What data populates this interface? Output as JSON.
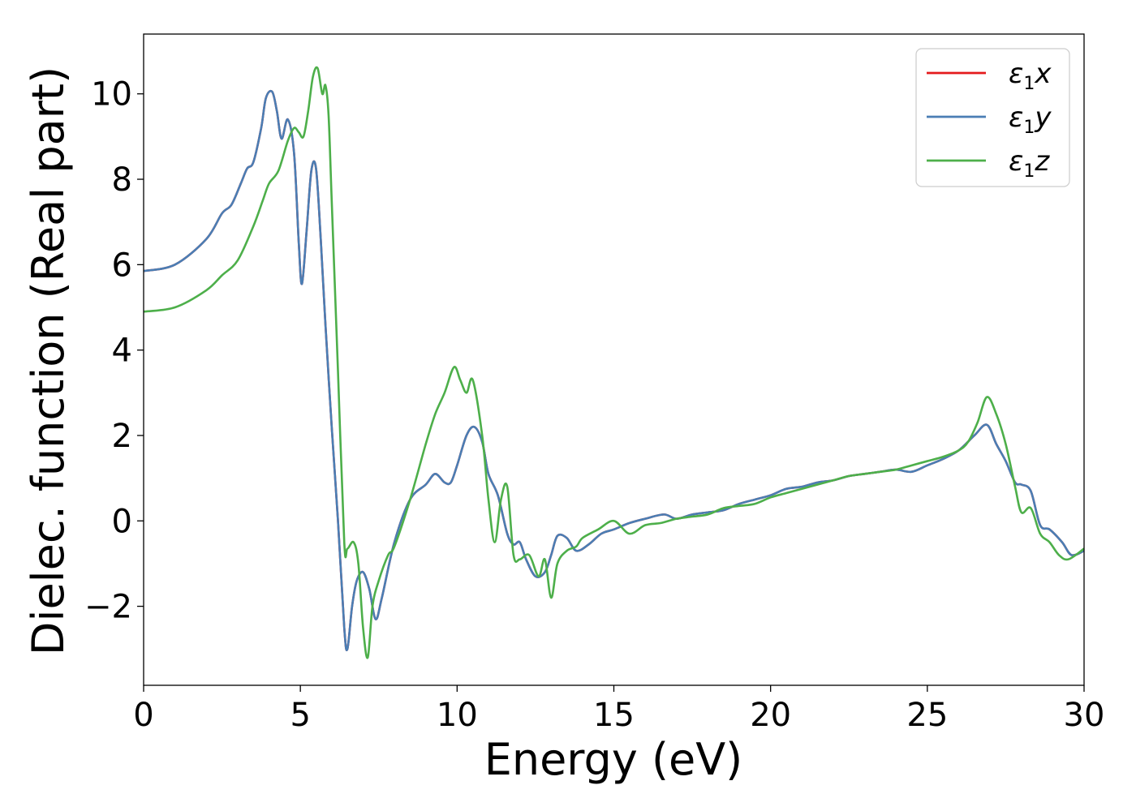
{
  "chart_data": {
    "type": "line",
    "title": "",
    "xlabel": "Energy (eV)",
    "ylabel": "Dielec. function (Real part)",
    "xlim": [
      0,
      30
    ],
    "ylim": [
      -3.85,
      11.4
    ],
    "xticks": [
      0,
      5,
      10,
      15,
      20,
      25,
      30
    ],
    "xtick_labels": [
      "0",
      "5",
      "10",
      "15",
      "20",
      "25",
      "30"
    ],
    "yticks": [
      -2,
      0,
      2,
      4,
      6,
      8,
      10
    ],
    "ytick_labels": [
      "−2",
      "0",
      "2",
      "4",
      "6",
      "8",
      "10"
    ],
    "grid": false,
    "legend_position": "top-right",
    "series": [
      {
        "name": "ε₁x",
        "legend": {
          "base": "ε",
          "sub": "1",
          "var": "x"
        },
        "color": "#e41a1c",
        "x": [
          0,
          1,
          2,
          2.5,
          2.8,
          3.1,
          3.3,
          3.5,
          3.75,
          3.9,
          4.1,
          4.25,
          4.4,
          4.6,
          4.8,
          4.95,
          5.05,
          5.2,
          5.35,
          5.5,
          5.65,
          5.8,
          6.0,
          6.2,
          6.4,
          6.5,
          6.65,
          6.8,
          7.0,
          7.2,
          7.4,
          7.6,
          8.0,
          8.5,
          9.0,
          9.3,
          9.6,
          9.8,
          10.0,
          10.3,
          10.55,
          10.8,
          11.0,
          11.3,
          11.6,
          11.8,
          12.0,
          12.2,
          12.5,
          12.8,
          13.0,
          13.2,
          13.5,
          13.8,
          14.2,
          14.6,
          15.0,
          15.5,
          16.0,
          16.6,
          17.0,
          17.5,
          18.0,
          18.5,
          19.0,
          19.5,
          20.0,
          20.5,
          21.0,
          21.5,
          22.0,
          22.5,
          23.0,
          23.5,
          24.0,
          24.5,
          25.0,
          25.5,
          26.0,
          26.5,
          26.9,
          27.2,
          27.5,
          27.8,
          28.0,
          28.3,
          28.6,
          28.9,
          29.3,
          29.6,
          30.0
        ],
        "values": [
          5.85,
          6.0,
          6.6,
          7.2,
          7.4,
          7.9,
          8.25,
          8.4,
          9.2,
          9.9,
          10.05,
          9.6,
          8.95,
          9.4,
          8.6,
          6.5,
          5.55,
          6.8,
          8.2,
          8.25,
          6.6,
          4.6,
          2.2,
          0.0,
          -2.5,
          -3.0,
          -2.0,
          -1.4,
          -1.2,
          -1.6,
          -2.3,
          -1.8,
          -0.5,
          0.5,
          0.85,
          1.1,
          0.9,
          0.9,
          1.3,
          2.0,
          2.2,
          1.85,
          1.1,
          0.6,
          -0.3,
          -0.55,
          -0.5,
          -0.9,
          -1.3,
          -1.2,
          -0.8,
          -0.35,
          -0.4,
          -0.7,
          -0.55,
          -0.3,
          -0.2,
          -0.05,
          0.05,
          0.15,
          0.05,
          0.15,
          0.2,
          0.25,
          0.4,
          0.5,
          0.6,
          0.75,
          0.8,
          0.9,
          0.95,
          1.05,
          1.1,
          1.15,
          1.2,
          1.15,
          1.3,
          1.45,
          1.65,
          2.0,
          2.25,
          1.8,
          1.4,
          0.9,
          0.85,
          0.7,
          -0.1,
          -0.2,
          -0.5,
          -0.8,
          -0.7
        ]
      },
      {
        "name": "ε₁y",
        "legend": {
          "base": "ε",
          "sub": "1",
          "var": "y"
        },
        "color": "#4a7eb4",
        "x": [
          0,
          1,
          2,
          2.5,
          2.8,
          3.1,
          3.3,
          3.5,
          3.75,
          3.9,
          4.1,
          4.25,
          4.4,
          4.6,
          4.8,
          4.95,
          5.05,
          5.2,
          5.35,
          5.5,
          5.65,
          5.8,
          6.0,
          6.2,
          6.4,
          6.5,
          6.65,
          6.8,
          7.0,
          7.2,
          7.4,
          7.6,
          8.0,
          8.5,
          9.0,
          9.3,
          9.6,
          9.8,
          10.0,
          10.3,
          10.55,
          10.8,
          11.0,
          11.3,
          11.6,
          11.8,
          12.0,
          12.2,
          12.5,
          12.8,
          13.0,
          13.2,
          13.5,
          13.8,
          14.2,
          14.6,
          15.0,
          15.5,
          16.0,
          16.6,
          17.0,
          17.5,
          18.0,
          18.5,
          19.0,
          19.5,
          20.0,
          20.5,
          21.0,
          21.5,
          22.0,
          22.5,
          23.0,
          23.5,
          24.0,
          24.5,
          25.0,
          25.5,
          26.0,
          26.5,
          26.9,
          27.2,
          27.5,
          27.8,
          28.0,
          28.3,
          28.6,
          28.9,
          29.3,
          29.6,
          30.0
        ],
        "values": [
          5.85,
          6.0,
          6.6,
          7.2,
          7.4,
          7.9,
          8.25,
          8.4,
          9.2,
          9.9,
          10.05,
          9.6,
          8.95,
          9.4,
          8.6,
          6.5,
          5.55,
          6.8,
          8.2,
          8.25,
          6.6,
          4.6,
          2.2,
          0.0,
          -2.5,
          -3.0,
          -2.0,
          -1.4,
          -1.2,
          -1.6,
          -2.3,
          -1.8,
          -0.5,
          0.5,
          0.85,
          1.1,
          0.9,
          0.9,
          1.3,
          2.0,
          2.2,
          1.85,
          1.1,
          0.6,
          -0.3,
          -0.55,
          -0.5,
          -0.9,
          -1.3,
          -1.2,
          -0.8,
          -0.35,
          -0.4,
          -0.7,
          -0.55,
          -0.3,
          -0.2,
          -0.05,
          0.05,
          0.15,
          0.05,
          0.15,
          0.2,
          0.25,
          0.4,
          0.5,
          0.6,
          0.75,
          0.8,
          0.9,
          0.95,
          1.05,
          1.1,
          1.15,
          1.2,
          1.15,
          1.3,
          1.45,
          1.65,
          2.0,
          2.25,
          1.8,
          1.4,
          0.9,
          0.85,
          0.7,
          -0.1,
          -0.2,
          -0.5,
          -0.8,
          -0.7
        ]
      },
      {
        "name": "ε₁z",
        "legend": {
          "base": "ε",
          "sub": "1",
          "var": "z"
        },
        "color": "#4daf4a",
        "x": [
          0,
          1,
          2,
          2.5,
          3.0,
          3.5,
          3.8,
          4.0,
          4.3,
          4.6,
          4.8,
          4.95,
          5.1,
          5.25,
          5.4,
          5.55,
          5.7,
          5.8,
          5.9,
          6.0,
          6.2,
          6.4,
          6.5,
          6.7,
          6.85,
          7.0,
          7.15,
          7.3,
          7.5,
          7.8,
          8.0,
          8.5,
          9.0,
          9.3,
          9.6,
          9.9,
          10.1,
          10.3,
          10.5,
          10.8,
          11.0,
          11.2,
          11.4,
          11.6,
          11.8,
          12.0,
          12.3,
          12.6,
          12.8,
          13.0,
          13.2,
          13.5,
          13.8,
          14.0,
          14.5,
          15.0,
          15.5,
          16.0,
          16.5,
          17.0,
          17.5,
          18.0,
          18.5,
          19.0,
          19.5,
          20.0,
          20.5,
          21.0,
          21.5,
          22.0,
          22.5,
          23.0,
          23.5,
          24.0,
          24.5,
          25.0,
          25.5,
          26.0,
          26.3,
          26.6,
          26.9,
          27.2,
          27.5,
          27.8,
          28.0,
          28.3,
          28.6,
          28.9,
          29.2,
          29.5,
          30.0
        ],
        "values": [
          4.9,
          5.0,
          5.4,
          5.75,
          6.1,
          6.9,
          7.5,
          7.9,
          8.2,
          8.9,
          9.2,
          9.1,
          9.0,
          9.6,
          10.4,
          10.6,
          10.0,
          10.2,
          9.5,
          7.5,
          3.5,
          -0.5,
          -0.65,
          -0.5,
          -1.0,
          -2.5,
          -3.2,
          -2.0,
          -1.4,
          -0.8,
          -0.6,
          0.5,
          1.8,
          2.5,
          3.0,
          3.6,
          3.3,
          3.0,
          3.3,
          2.0,
          0.5,
          -0.5,
          0.5,
          0.8,
          -0.8,
          -0.9,
          -0.8,
          -1.3,
          -0.9,
          -1.8,
          -1.0,
          -0.7,
          -0.6,
          -0.4,
          -0.2,
          0.0,
          -0.3,
          -0.1,
          -0.05,
          0.05,
          0.1,
          0.15,
          0.3,
          0.35,
          0.4,
          0.55,
          0.65,
          0.75,
          0.85,
          0.95,
          1.05,
          1.1,
          1.15,
          1.2,
          1.3,
          1.4,
          1.5,
          1.65,
          1.85,
          2.3,
          2.9,
          2.5,
          1.8,
          0.8,
          0.2,
          0.3,
          -0.3,
          -0.5,
          -0.8,
          -0.9,
          -0.65
        ]
      }
    ]
  }
}
